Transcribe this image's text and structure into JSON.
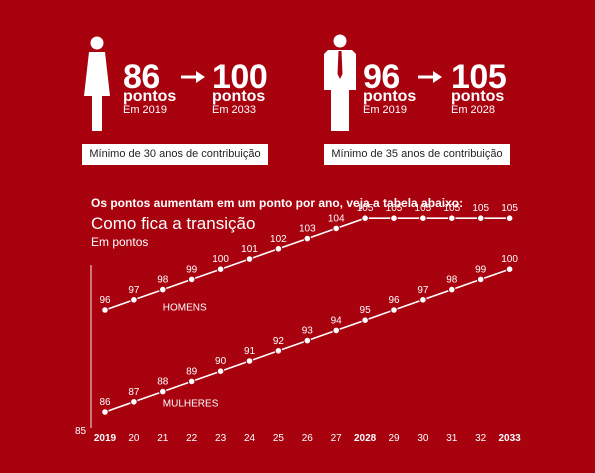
{
  "women": {
    "icon": "woman-icon",
    "from_value": "86",
    "from_unit": "pontos",
    "from_year": "Em 2019",
    "to_value": "100",
    "to_unit": "pontos",
    "to_year": "Em 2033",
    "requirement": "Mínimo de 30 anos de contribuição"
  },
  "men": {
    "icon": "man-icon",
    "from_value": "96",
    "from_unit": "pontos",
    "from_year": "Em 2019",
    "to_value": "105",
    "to_unit": "pontos",
    "to_year": "Em 2028",
    "requirement": "Mínimo de 35 anos de contribuição"
  },
  "arrow_icon": "right-arrow-icon",
  "intro": "Os pontos aumentam em um ponto por ano, veja a tabela abaixo:",
  "colors": {
    "background": "#a8020f",
    "marks": "#ffffff"
  },
  "chart_data": {
    "type": "line",
    "title": "Como fica a transição",
    "subtitle": "Em pontos",
    "x": [
      "2019",
      "20",
      "21",
      "22",
      "23",
      "24",
      "25",
      "26",
      "27",
      "2028",
      "29",
      "30",
      "31",
      "32",
      "2033"
    ],
    "x_bold": [
      "2019",
      "2028",
      "2033"
    ],
    "ylim": [
      85,
      107
    ],
    "y_ticks": [
      85
    ],
    "grid": false,
    "series": [
      {
        "name": "HOMENS",
        "values": [
          96,
          97,
          98,
          99,
          100,
          101,
          102,
          103,
          104,
          105,
          105,
          105,
          105,
          105,
          105
        ]
      },
      {
        "name": "MULHERES",
        "values": [
          86,
          87,
          88,
          89,
          90,
          91,
          92,
          93,
          94,
          95,
          96,
          97,
          98,
          99,
          100
        ]
      }
    ]
  }
}
